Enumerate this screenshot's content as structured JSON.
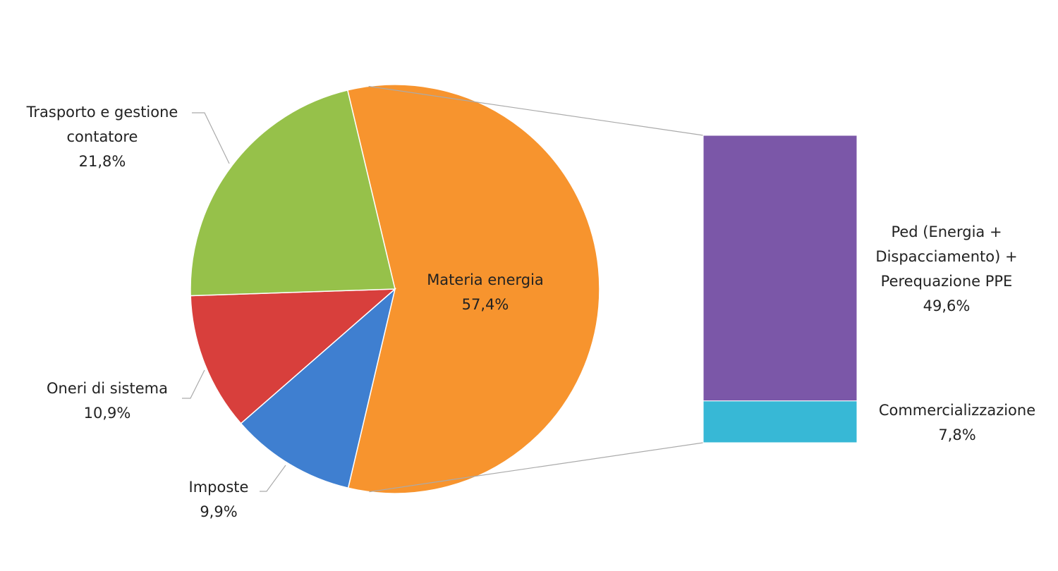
{
  "chart_data": {
    "type": "pie-of-bar",
    "pie": {
      "slices": [
        {
          "name": "Materia energia",
          "value": 57.4,
          "label": "57,4%",
          "color": "#f7942e"
        },
        {
          "name": "Imposte",
          "value": 9.9,
          "label": "9,9%",
          "color": "#3f7fd0"
        },
        {
          "name": "Oneri di sistema",
          "value": 10.9,
          "label": "10,9%",
          "color": "#d83f3c"
        },
        {
          "name": "Trasporto e gestione contatore",
          "value": 21.8,
          "label": "21,8%",
          "color": "#96c14a"
        }
      ]
    },
    "bar": {
      "breakdown_of": "Materia energia",
      "segments": [
        {
          "name": "Ped (Energia + Dispacciamento) + Perequazione PPE",
          "lines": [
            "Ped (Energia +",
            "Dispacciamento) +",
            "Perequazione PPE"
          ],
          "value": 49.6,
          "label": "49,6%",
          "color": "#7b57a8"
        },
        {
          "name": "Commercializzazione",
          "lines": [
            "Commercializzazione"
          ],
          "value": 7.8,
          "label": "7,8%",
          "color": "#37b8d6"
        }
      ]
    }
  }
}
